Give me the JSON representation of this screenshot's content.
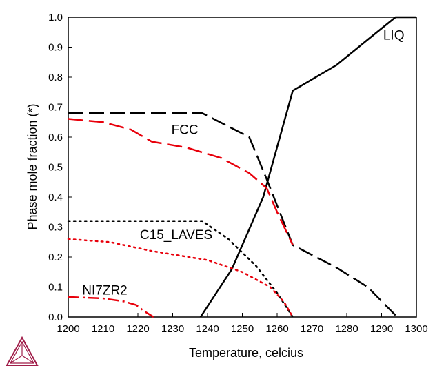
{
  "chart_data": {
    "type": "line",
    "xlabel": "Temperature, celcius",
    "ylabel": "Phase mole fraction (*)",
    "xlim": [
      1200,
      1300
    ],
    "ylim": [
      0,
      1.0
    ],
    "xticks": [
      1200,
      1210,
      1220,
      1230,
      1240,
      1250,
      1260,
      1270,
      1280,
      1290,
      1300
    ],
    "xtick_labels": [
      "1200",
      "1210",
      "1220",
      "1230",
      "1240",
      "1250",
      "1260",
      "1270",
      "1280",
      "1290",
      "1300"
    ],
    "yticks": [
      0,
      0.1,
      0.2,
      0.3,
      0.4,
      0.5,
      0.6,
      0.7,
      0.8,
      0.9,
      1.0
    ],
    "ytick_labels": [
      "0.0",
      "0.1",
      "0.2",
      "0.3",
      "0.4",
      "0.5",
      "0.6",
      "0.7",
      "0.8",
      "0.9",
      "1.0"
    ],
    "grid": false,
    "legend": "none",
    "series": [
      {
        "color": "#000000",
        "dash": "solid",
        "x": [
          1238,
          1247,
          1256,
          1264.5,
          1277,
          1286,
          1294,
          1300
        ],
        "y": [
          0,
          0.16,
          0.4,
          0.755,
          0.84,
          0.925,
          1.0,
          1.0
        ]
      },
      {
        "color": "#000000",
        "dash": "dashed",
        "x": [
          1200,
          1238.5,
          1252,
          1257,
          1264.5,
          1277,
          1286,
          1294.5
        ],
        "y": [
          0.68,
          0.68,
          0.6,
          0.46,
          0.24,
          0.165,
          0.1,
          0
        ]
      },
      {
        "color": "#e8000b",
        "dash": "dashed",
        "x": [
          1200,
          1210,
          1218,
          1224,
          1234,
          1244,
          1252,
          1257,
          1260,
          1264.5
        ],
        "y": [
          0.661,
          0.65,
          0.625,
          0.585,
          0.565,
          0.53,
          0.48,
          0.43,
          0.35,
          0.24
        ]
      },
      {
        "color": "#000000",
        "dash": "dotted",
        "x": [
          1200,
          1238.5,
          1246,
          1254,
          1260,
          1264.5
        ],
        "y": [
          0.32,
          0.32,
          0.26,
          0.17,
          0.08,
          0
        ]
      },
      {
        "color": "#e8000b",
        "dash": "dotted",
        "x": [
          1200,
          1212,
          1224,
          1240,
          1250,
          1258,
          1262,
          1264.5
        ],
        "y": [
          0.26,
          0.25,
          0.22,
          0.19,
          0.15,
          0.1,
          0.05,
          0
        ]
      },
      {
        "color": "#e8000b",
        "dash": "dashdot",
        "x": [
          1200,
          1210,
          1216,
          1219.5,
          1222,
          1224.5
        ],
        "y": [
          0.067,
          0.062,
          0.052,
          0.04,
          0.018,
          0
        ]
      }
    ],
    "annotations": [
      {
        "text": "LIQ",
        "x": 1293.5,
        "y": 0.925
      },
      {
        "text": "FCC",
        "x": 1233.5,
        "y": 0.61
      },
      {
        "text": "C15_LAVES",
        "x": 1231,
        "y": 0.26
      },
      {
        "text": "NI7ZR2",
        "x": 1210.5,
        "y": 0.075
      }
    ]
  },
  "colors": {
    "logo": "#a01d49"
  }
}
